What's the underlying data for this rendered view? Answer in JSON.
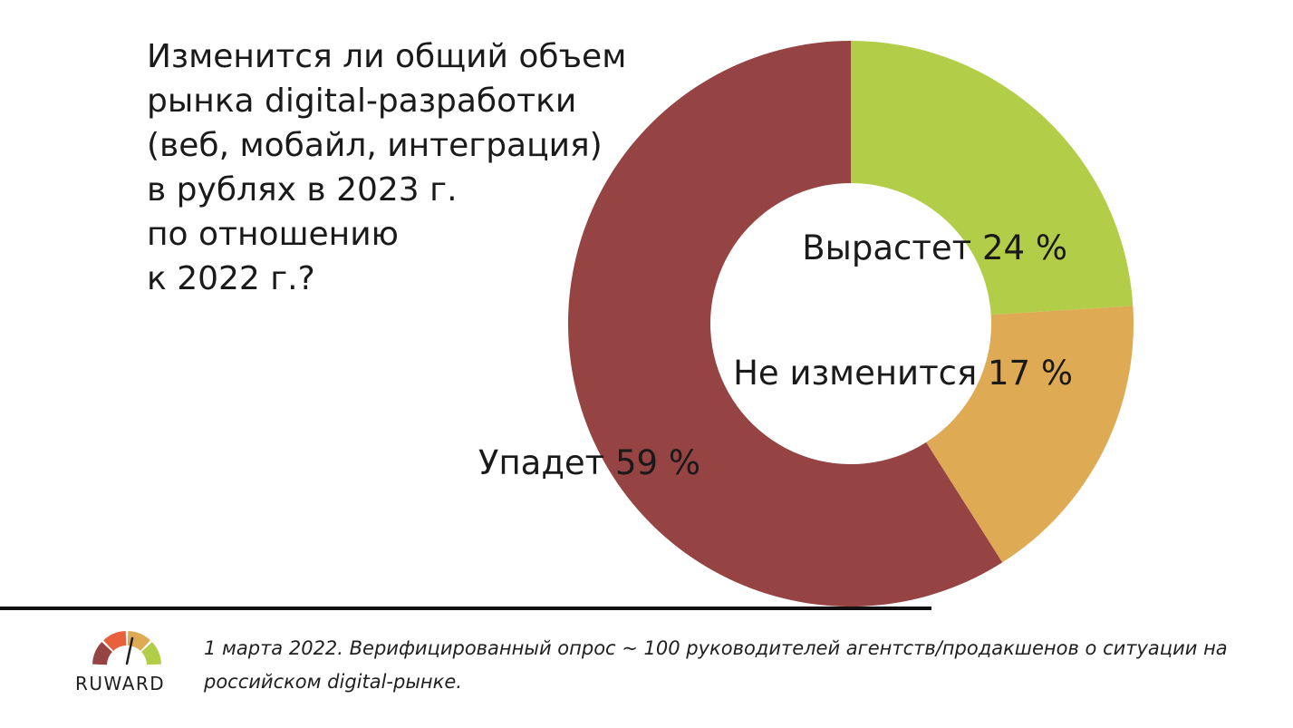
{
  "question": {
    "lines": [
      "Изменится ли общий объем",
      "рынка digital-разработки",
      "(веб, мобайл, интеграция)",
      "в рублях в 2023 г.",
      "по отношению",
      "к 2022 г.?"
    ]
  },
  "chart_data": {
    "type": "pie",
    "variant": "donut",
    "slices": [
      {
        "label": "Вырастет",
        "value": 24,
        "value_text": "24 %",
        "color": "#b2cd47"
      },
      {
        "label": "Не изменится",
        "value": 17,
        "value_text": "17 %",
        "color": "#dfaa54"
      },
      {
        "label": "Упадет",
        "value": 59,
        "value_text": "59 %",
        "color": "#954343"
      }
    ],
    "start_angle": "12 o'clock",
    "direction": "clockwise"
  },
  "footer": {
    "note": "1 марта 2022. Верифицированный опрос ~ 100 руководителей агентств/продакшенов о ситуации на российском digital-рынке.",
    "logo_text": "RUWARD",
    "logo_colors": [
      "#954343",
      "#e8603c",
      "#dfaa54",
      "#b2cd47"
    ]
  }
}
